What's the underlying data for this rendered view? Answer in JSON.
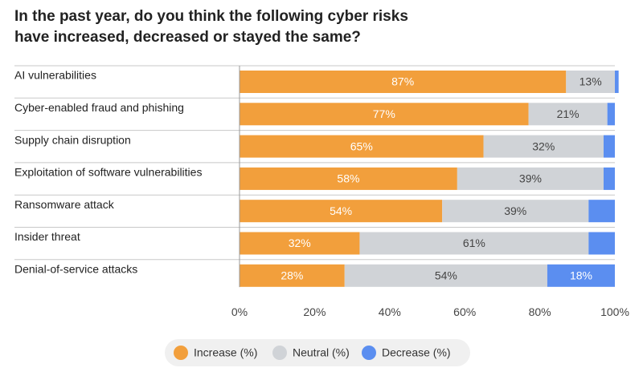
{
  "chart_data": {
    "type": "stacked-bar-horizontal",
    "title": "In the past year, do you think the following cyber risks have increased, decreased or stayed the same?",
    "categories": [
      "AI vulnerabilities",
      "Cyber-enabled fraud and phishing",
      "Supply chain disruption",
      "Exploitation of software vulnerabilities",
      "Ransomware attack",
      "Insider threat",
      "Denial-of-service attacks"
    ],
    "series": [
      {
        "name": "Increase (%)",
        "color": "#f29f3c",
        "values": [
          87,
          77,
          65,
          58,
          54,
          32,
          28
        ],
        "value_labels": [
          "87%",
          "77%",
          "65%",
          "58%",
          "54%",
          "32%",
          "28%"
        ]
      },
      {
        "name": "Neutral (%)",
        "color": "#d0d3d7",
        "values": [
          13,
          21,
          32,
          39,
          39,
          61,
          54
        ],
        "value_labels": [
          "13%",
          "21%",
          "32%",
          "39%",
          "39%",
          "61%",
          "54%"
        ]
      },
      {
        "name": "Decrease (%)",
        "color": "#5b8ef0",
        "values": [
          1,
          2,
          3,
          3,
          7,
          7,
          18
        ],
        "value_labels": [
          null,
          null,
          null,
          null,
          null,
          null,
          "18%"
        ]
      }
    ],
    "xlim": [
      0,
      100
    ],
    "xticks": [
      {
        "value": 0,
        "label": "0%"
      },
      {
        "value": 20,
        "label": "20%"
      },
      {
        "value": 40,
        "label": "40%"
      },
      {
        "value": 60,
        "label": "60%"
      },
      {
        "value": 80,
        "label": "80%"
      },
      {
        "value": 100,
        "label": "100%"
      }
    ]
  }
}
